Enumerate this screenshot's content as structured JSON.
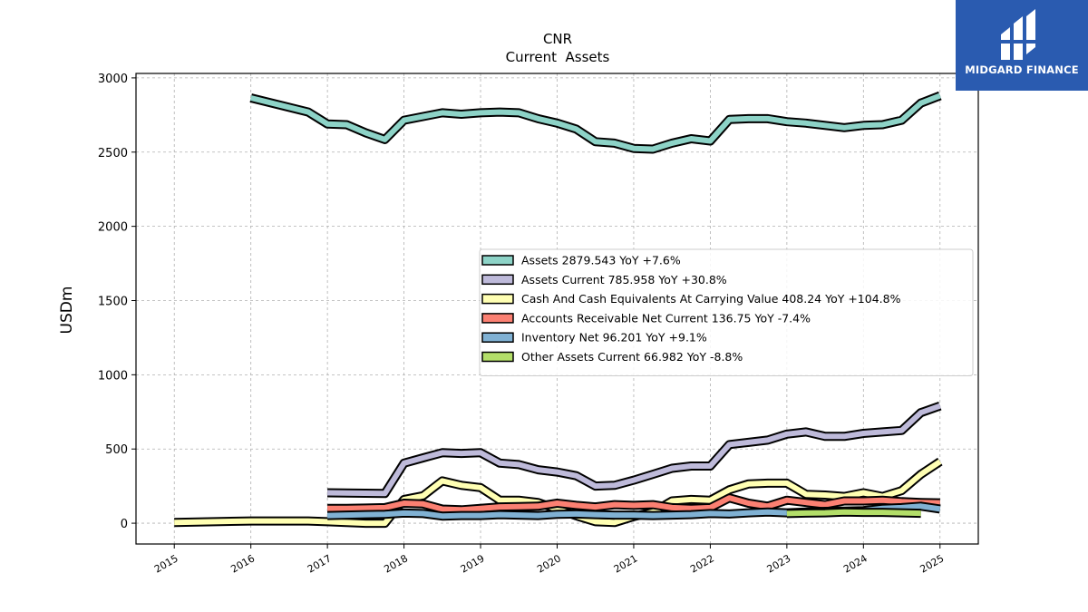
{
  "brand": {
    "name": "MIDGARD FINANCE",
    "color": "#2a5bb0",
    "logo_icon": "midgard-logo-icon"
  },
  "chart_data": {
    "type": "line",
    "title": "CNR",
    "subtitle": "Current  Assets",
    "xlabel": "",
    "ylabel": "USDm",
    "xlim": [
      2014.5,
      2025.5
    ],
    "ylim": [
      -140,
      3030
    ],
    "x_ticks": [
      2015,
      2016,
      2017,
      2018,
      2019,
      2020,
      2021,
      2022,
      2023,
      2024,
      2025
    ],
    "x_tick_labels": [
      "2015",
      "2016",
      "2017",
      "2018",
      "2019",
      "2020",
      "2021",
      "2022",
      "2023",
      "2024",
      "2025"
    ],
    "y_ticks": [
      0,
      500,
      1000,
      1500,
      2000,
      2500,
      3000
    ],
    "y_tick_labels": [
      "0",
      "500",
      "1000",
      "1500",
      "2000",
      "2500",
      "3000"
    ],
    "grid": true,
    "legend_position": "center-right",
    "series": [
      {
        "name": "Assets  2879.543 YoY +7.6%",
        "color": "#8dd3c7",
        "x": [
          2016.0,
          2016.75,
          2017.0,
          2017.25,
          2017.5,
          2017.75,
          2018.0,
          2018.25,
          2018.5,
          2018.75,
          2019.0,
          2019.25,
          2019.5,
          2019.75,
          2020.0,
          2020.25,
          2020.5,
          2020.75,
          2021.0,
          2021.25,
          2021.5,
          2021.75,
          2022.0,
          2022.25,
          2022.5,
          2022.75,
          2023.0,
          2023.25,
          2023.5,
          2023.75,
          2024.0,
          2024.25,
          2024.5,
          2024.75,
          2025.0
        ],
        "y": [
          2865,
          2770,
          2690,
          2685,
          2630,
          2585,
          2715,
          2740,
          2765,
          2755,
          2765,
          2770,
          2765,
          2725,
          2695,
          2655,
          2570,
          2560,
          2525,
          2520,
          2560,
          2590,
          2575,
          2720,
          2725,
          2725,
          2705,
          2695,
          2680,
          2665,
          2680,
          2685,
          2715,
          2830,
          2880
        ]
      },
      {
        "name": "Assets Current  785.958 YoY +30.8%",
        "color": "#bebada",
        "x": [
          2017.0,
          2017.75,
          2018.0,
          2018.25,
          2018.5,
          2018.75,
          2019.0,
          2019.25,
          2019.5,
          2019.75,
          2020.0,
          2020.25,
          2020.5,
          2020.75,
          2021.0,
          2021.25,
          2021.5,
          2021.75,
          2022.0,
          2022.25,
          2022.5,
          2022.75,
          2023.0,
          2023.25,
          2023.5,
          2023.75,
          2024.0,
          2024.25,
          2024.5,
          2024.75,
          2025.0
        ],
        "y": [
          205,
          200,
          405,
          440,
          475,
          470,
          475,
          405,
          395,
          360,
          345,
          320,
          250,
          255,
          290,
          330,
          370,
          385,
          385,
          530,
          545,
          560,
          600,
          615,
          585,
          585,
          605,
          615,
          625,
          745,
          790
        ]
      },
      {
        "name": "Cash And Cash Equivalents At Carrying Value  408.24 YoY +104.8%",
        "color": "#ffffb3",
        "x": [
          2015.0,
          2016.0,
          2016.75,
          2017.0,
          2017.25,
          2017.5,
          2017.75,
          2018.0,
          2018.25,
          2018.5,
          2018.75,
          2019.0,
          2019.25,
          2019.5,
          2019.75,
          2020.0,
          2020.25,
          2020.5,
          2020.75,
          2021.0,
          2021.25,
          2021.5,
          2021.75,
          2022.0,
          2022.25,
          2022.5,
          2022.75,
          2023.0,
          2023.25,
          2023.5,
          2023.75,
          2024.0,
          2024.25,
          2024.5,
          2024.75,
          2025.0
        ],
        "y": [
          5,
          15,
          15,
          10,
          5,
          0,
          0,
          160,
          185,
          285,
          255,
          240,
          155,
          155,
          140,
          95,
          50,
          10,
          5,
          45,
          75,
          150,
          160,
          155,
          225,
          265,
          270,
          270,
          195,
          190,
          180,
          205,
          180,
          220,
          330,
          415
        ]
      },
      {
        "name": "Accounts Receivable Net Current  136.75 YoY -7.4%",
        "color": "#fb8072",
        "x": [
          2017.0,
          2017.25,
          2017.5,
          2017.75,
          2018.0,
          2018.25,
          2018.5,
          2018.75,
          2019.0,
          2019.25,
          2019.5,
          2019.75,
          2020.0,
          2020.25,
          2020.5,
          2020.75,
          2021.0,
          2021.25,
          2021.5,
          2021.75,
          2022.0,
          2022.25,
          2022.5,
          2022.75,
          2023.0,
          2023.25,
          2023.5,
          2023.75,
          2024.0,
          2024.25,
          2024.5,
          2024.75,
          2025.0
        ],
        "y": [
          100,
          100,
          102,
          105,
          135,
          130,
          95,
          90,
          100,
          110,
          112,
          115,
          135,
          120,
          110,
          125,
          120,
          125,
          105,
          100,
          105,
          170,
          135,
          115,
          155,
          140,
          125,
          150,
          150,
          155,
          145,
          140,
          137
        ]
      },
      {
        "name": "Inventory Net  96.201 YoY +9.1%",
        "color": "#80b1d3",
        "x": [
          2017.0,
          2017.25,
          2017.5,
          2017.75,
          2018.0,
          2018.25,
          2018.5,
          2018.75,
          2019.0,
          2019.25,
          2019.5,
          2019.75,
          2020.0,
          2020.25,
          2020.5,
          2020.75,
          2021.0,
          2021.25,
          2021.5,
          2021.75,
          2022.0,
          2022.25,
          2022.5,
          2022.75,
          2023.0,
          2023.25,
          2023.5,
          2023.75,
          2024.0,
          2024.25,
          2024.5,
          2024.75,
          2025.0
        ],
        "y": [
          52,
          55,
          58,
          60,
          68,
          65,
          48,
          52,
          52,
          58,
          55,
          52,
          60,
          62,
          58,
          55,
          55,
          52,
          55,
          58,
          65,
          62,
          70,
          75,
          70,
          75,
          80,
          82,
          85,
          100,
          105,
          115,
          96
        ]
      },
      {
        "name": "Other Assets Current  66.982 YoY -8.8%",
        "color": "#b3de69",
        "x": [
          2023.0,
          2023.25,
          2023.5,
          2023.75,
          2024.0,
          2024.25,
          2024.5,
          2024.75
        ],
        "y": [
          65,
          68,
          70,
          75,
          73,
          73,
          70,
          67
        ]
      }
    ]
  }
}
